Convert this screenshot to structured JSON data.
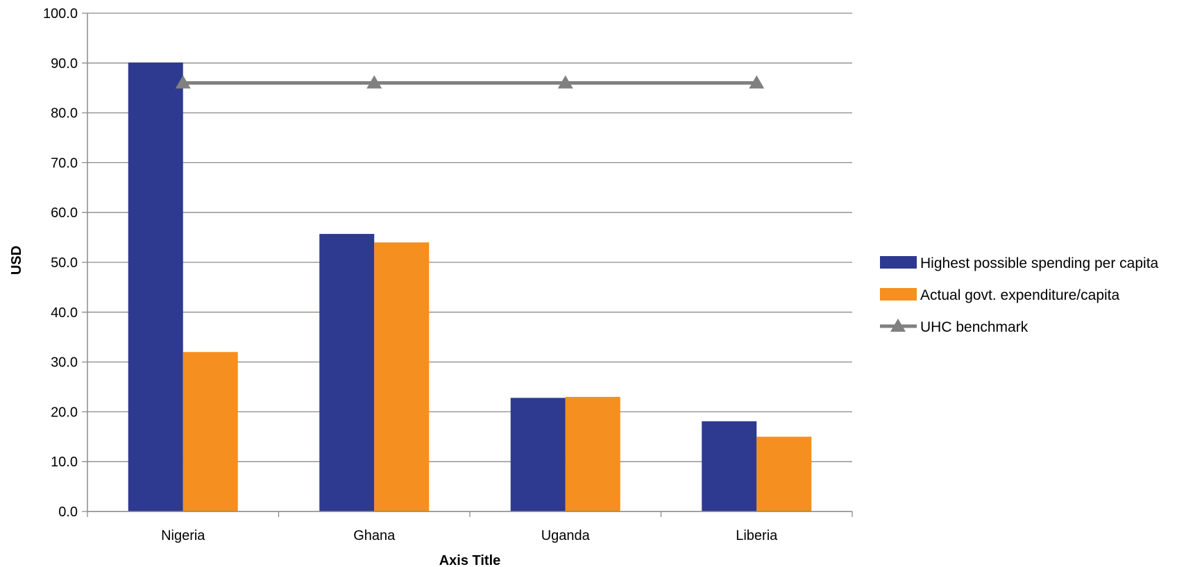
{
  "chart_data": {
    "type": "bar",
    "categories": [
      "Nigeria",
      "Ghana",
      "Uganda",
      "Liberia"
    ],
    "series": [
      {
        "name": "Highest possible spending per capita",
        "type": "bar",
        "color": "#2E3A8F",
        "values": [
          90.1,
          55.7,
          22.8,
          18.1
        ]
      },
      {
        "name": "Actual govt. expenditure/capita",
        "type": "bar",
        "color": "#F58F1F",
        "values": [
          32.0,
          54.0,
          23.0,
          15.0
        ]
      },
      {
        "name": "UHC benchmark",
        "type": "line",
        "marker": "triangle",
        "color": "#808080",
        "values": [
          86,
          86,
          86,
          86
        ]
      }
    ],
    "xlabel": "Axis Title",
    "ylabel": "USD",
    "ylim": [
      0,
      100
    ],
    "yticks": [
      "0.0",
      "10.0",
      "20.0",
      "30.0",
      "40.0",
      "50.0",
      "60.0",
      "70.0",
      "80.0",
      "90.0",
      "100.0"
    ],
    "grid": true,
    "legend": "right"
  }
}
